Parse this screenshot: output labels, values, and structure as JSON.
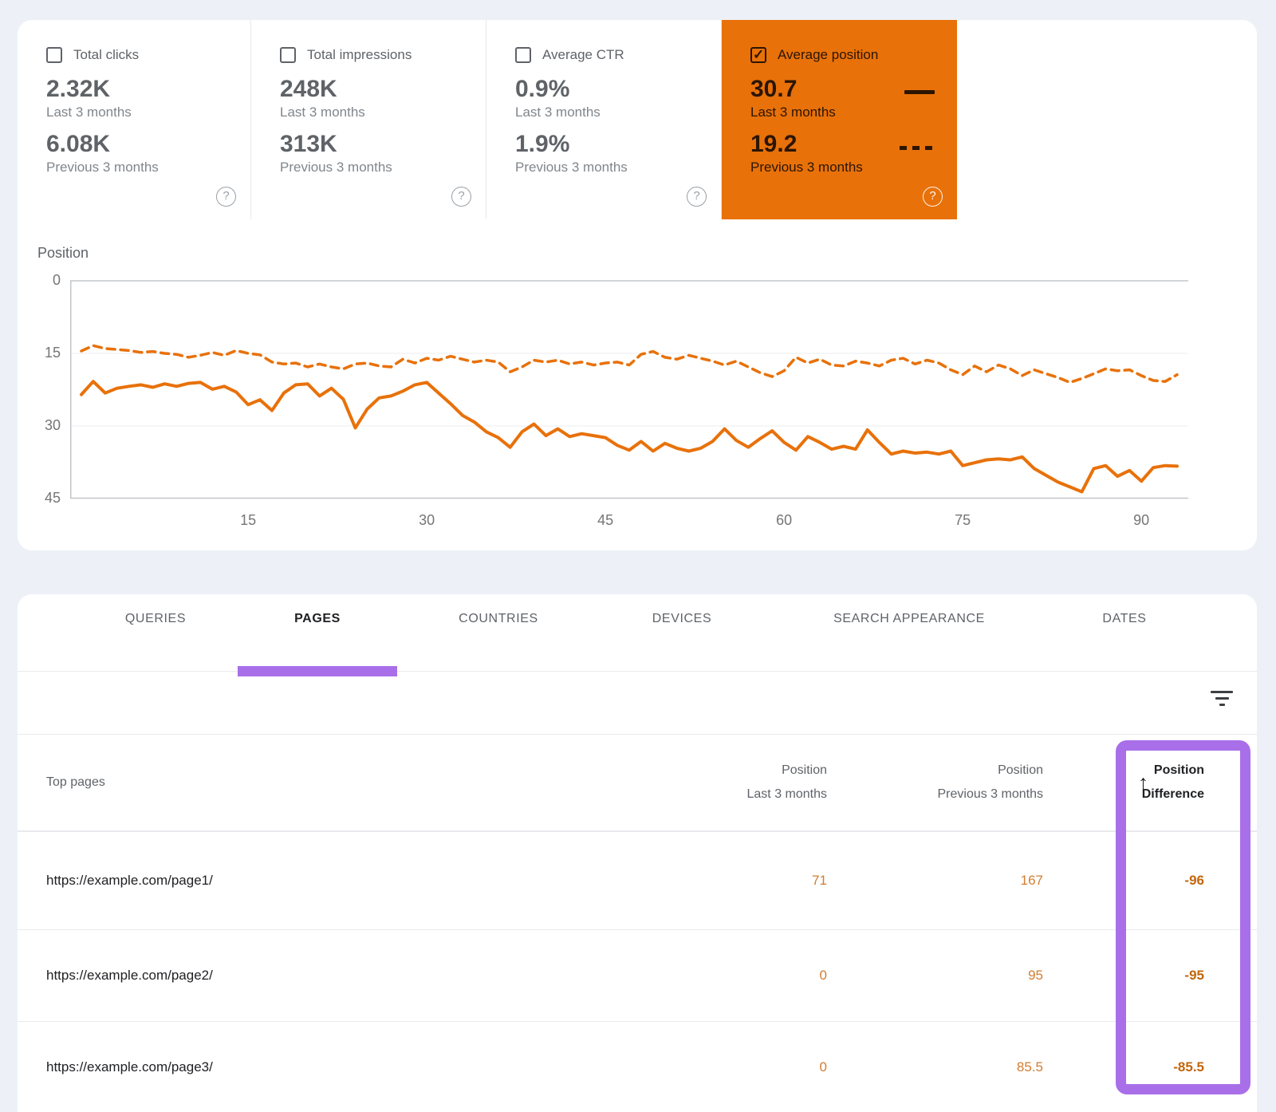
{
  "colors": {
    "page_bg": "#edf1f7",
    "accent_orange": "#e8710a",
    "annotation_purple": "#a96fe9",
    "text_dark": "#202124",
    "text_gray": "#5f6368"
  },
  "summary_cards": [
    {
      "label": "Total clicks",
      "checkbox": "unchecked",
      "selected": false,
      "value_last": "2.32K",
      "caption_last": "Last 3 months",
      "value_prev": "6.08K",
      "caption_prev": "Previous 3 months",
      "help_icon": "?"
    },
    {
      "label": "Total impressions",
      "checkbox": "unchecked",
      "selected": false,
      "value_last": "248K",
      "caption_last": "Last 3 months",
      "value_prev": "313K",
      "caption_prev": "Previous 3 months",
      "help_icon": "?"
    },
    {
      "label": "Average CTR",
      "checkbox": "unchecked",
      "selected": false,
      "value_last": "0.9%",
      "caption_last": "Last 3 months",
      "value_prev": "1.9%",
      "caption_prev": "Previous 3 months",
      "help_icon": "?"
    },
    {
      "label": "Average position",
      "checkbox": "checked",
      "selected": true,
      "value_last": "30.7",
      "caption_last": "Last 3 months",
      "legend_last": "solid-line",
      "value_prev": "19.2",
      "caption_prev": "Previous 3 months",
      "legend_prev": "dashed-line",
      "help_icon": "?"
    }
  ],
  "chart_data": {
    "type": "line",
    "title": "",
    "ylabel": "Position",
    "xlabel": "",
    "y_axis_inverted": true,
    "ylim": [
      0,
      45
    ],
    "y_ticks": [
      0,
      15,
      30,
      45
    ],
    "x_ticks": [
      15,
      30,
      45,
      60,
      75,
      90
    ],
    "x_range": [
      1,
      93
    ],
    "grid": "horizontal",
    "legend_position": "none",
    "series": [
      {
        "name": "Last 3 months",
        "style": "solid",
        "color": "#e8710a",
        "values": [
          23.5,
          20.8,
          23.2,
          22.2,
          21.8,
          21.5,
          22,
          21.3,
          21.8,
          21.2,
          21,
          22.4,
          21.8,
          23,
          25.6,
          24.6,
          26.8,
          23.2,
          21.5,
          21.3,
          23.8,
          22.2,
          24.5,
          30.4,
          26.5,
          24.2,
          23.8,
          22.8,
          21.5,
          21,
          23.2,
          25.4,
          27.8,
          29.2,
          31.2,
          32.4,
          34.4,
          31.2,
          29.6,
          32,
          30.6,
          32.2,
          31.6,
          32,
          32.4,
          34,
          35,
          33.2,
          35.2,
          33.6,
          34.6,
          35.2,
          34.6,
          33.2,
          30.6,
          33,
          34.4,
          32.6,
          31,
          33.4,
          35,
          32.2,
          33.4,
          34.8,
          34.2,
          34.8,
          30.8,
          33.4,
          35.8,
          35.2,
          35.6,
          35.4,
          35.8,
          35.2,
          38.2,
          37.6,
          37,
          36.8,
          37,
          36.4,
          38.8,
          40.2,
          41.6,
          42.6,
          43.6,
          38.8,
          38.2,
          40.4,
          39.2,
          41.4,
          38.6,
          38.2,
          38.3
        ]
      },
      {
        "name": "Previous 3 months",
        "style": "dashed",
        "color": "#e8710a",
        "values": [
          14.5,
          13.4,
          14,
          14.2,
          14.4,
          14.8,
          14.6,
          15,
          15.2,
          15.8,
          15.4,
          14.8,
          15.4,
          14.4,
          15,
          15.3,
          16.8,
          17.2,
          17,
          17.8,
          17.2,
          17.8,
          18.2,
          17.2,
          17,
          17.6,
          17.8,
          16.2,
          17,
          16,
          16.4,
          15.6,
          16.2,
          16.8,
          16.4,
          16.8,
          18.8,
          17.8,
          16.4,
          16.8,
          16.4,
          17.2,
          16.8,
          17.4,
          17,
          16.8,
          17.4,
          15.2,
          14.6,
          15.8,
          16.2,
          15.4,
          16,
          16.6,
          17.4,
          16.6,
          17.8,
          19,
          19.8,
          18.6,
          15.8,
          17,
          16.2,
          17.4,
          17.6,
          16.6,
          17,
          17.6,
          16.4,
          16,
          17.2,
          16.4,
          17,
          18.4,
          19.4,
          17.6,
          18.8,
          17.4,
          18.2,
          19.6,
          18.4,
          19.2,
          20,
          21,
          20.2,
          19.2,
          18.2,
          18.6,
          18.4,
          19.6,
          20.6,
          20.8,
          19.4
        ]
      }
    ]
  },
  "tabs": [
    {
      "label": "QUERIES",
      "active": false
    },
    {
      "label": "PAGES",
      "active": true
    },
    {
      "label": "COUNTRIES",
      "active": false
    },
    {
      "label": "DEVICES",
      "active": false
    },
    {
      "label": "SEARCH APPEARANCE",
      "active": false
    },
    {
      "label": "DATES",
      "active": false
    }
  ],
  "toolbar": {
    "filter_icon": "filter-list-icon"
  },
  "table": {
    "columns": [
      {
        "line1": "Top pages"
      },
      {
        "line1": "Position",
        "line2": "Last 3 months"
      },
      {
        "line1": "Position",
        "line2": "Previous 3 months"
      },
      {
        "line1": "Position",
        "line2": "Difference",
        "sorted": true,
        "sort_icon": "↑"
      }
    ],
    "rows": [
      {
        "page": "https://example.com/page1/",
        "pos_last": "71",
        "pos_prev": "167",
        "diff": "-96"
      },
      {
        "page": "https://example.com/page2/",
        "pos_last": "0",
        "pos_prev": "95",
        "diff": "-95"
      },
      {
        "page": "https://example.com/page3/",
        "pos_last": "0",
        "pos_prev": "85.5",
        "diff": "-85.5"
      }
    ]
  },
  "annotations": {
    "highlighted_column": "Position Difference",
    "highlight_color": "#a96fe9"
  }
}
